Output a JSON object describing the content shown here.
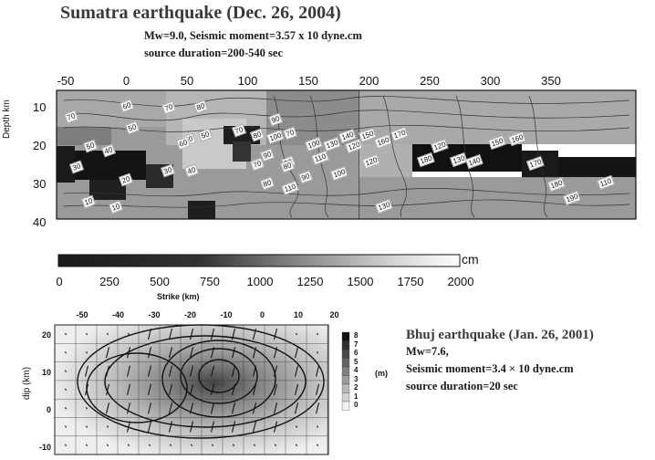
{
  "sumatra": {
    "title": "Sumatra earthquake (Dec. 26, 2004)",
    "line1": "Mw=9.0, Seismic moment=3.57 x 10 dyne.cm",
    "line2": "source duration=200-540 sec",
    "x_ticks": [
      "-50",
      "0",
      "50",
      "100",
      "150",
      "200",
      "250",
      "300",
      "350"
    ],
    "y_ticks": [
      "10",
      "20",
      "30",
      "40"
    ],
    "y_label": "Depth km",
    "contour_labels": [
      "60",
      "70",
      "80",
      "70",
      "50",
      "50",
      "40",
      "30",
      "20",
      "30",
      "40",
      "10",
      "10",
      "20",
      "50",
      "60",
      "70",
      "80",
      "90",
      "100",
      "70",
      "90",
      "90",
      "100",
      "110",
      "80",
      "70",
      "80",
      "90",
      "110",
      "100",
      "120",
      "130",
      "140",
      "150",
      "160",
      "170",
      "180",
      "120",
      "130",
      "140",
      "150",
      "160",
      "170",
      "180",
      "190",
      "110",
      "120",
      "130"
    ]
  },
  "colorbar": {
    "ticks": [
      "0",
      "250",
      "500",
      "750",
      "1000",
      "1250",
      "1500",
      "1750",
      "2000"
    ],
    "unit": "cm",
    "axis_label": "Strike (km)"
  },
  "bhuj_plot": {
    "x_ticks": [
      "-50",
      "-40",
      "-30",
      "-20",
      "-10",
      "0",
      "10",
      "20"
    ],
    "y_ticks": [
      "20",
      "10",
      "0",
      "-10"
    ],
    "y_label": "dip (km)",
    "cbar_ticks": [
      "8",
      "7",
      "6",
      "5",
      "4",
      "3",
      "2",
      "1",
      "0"
    ],
    "cbar_unit": "(m)"
  },
  "bhuj": {
    "title": "Bhuj earthquake (Jan. 26, 2001)",
    "line1": "Mw=7.6,",
    "line2": "Seismic moment=3.4 × 10 dyne.cm",
    "line3": "source duration=20 sec"
  }
}
